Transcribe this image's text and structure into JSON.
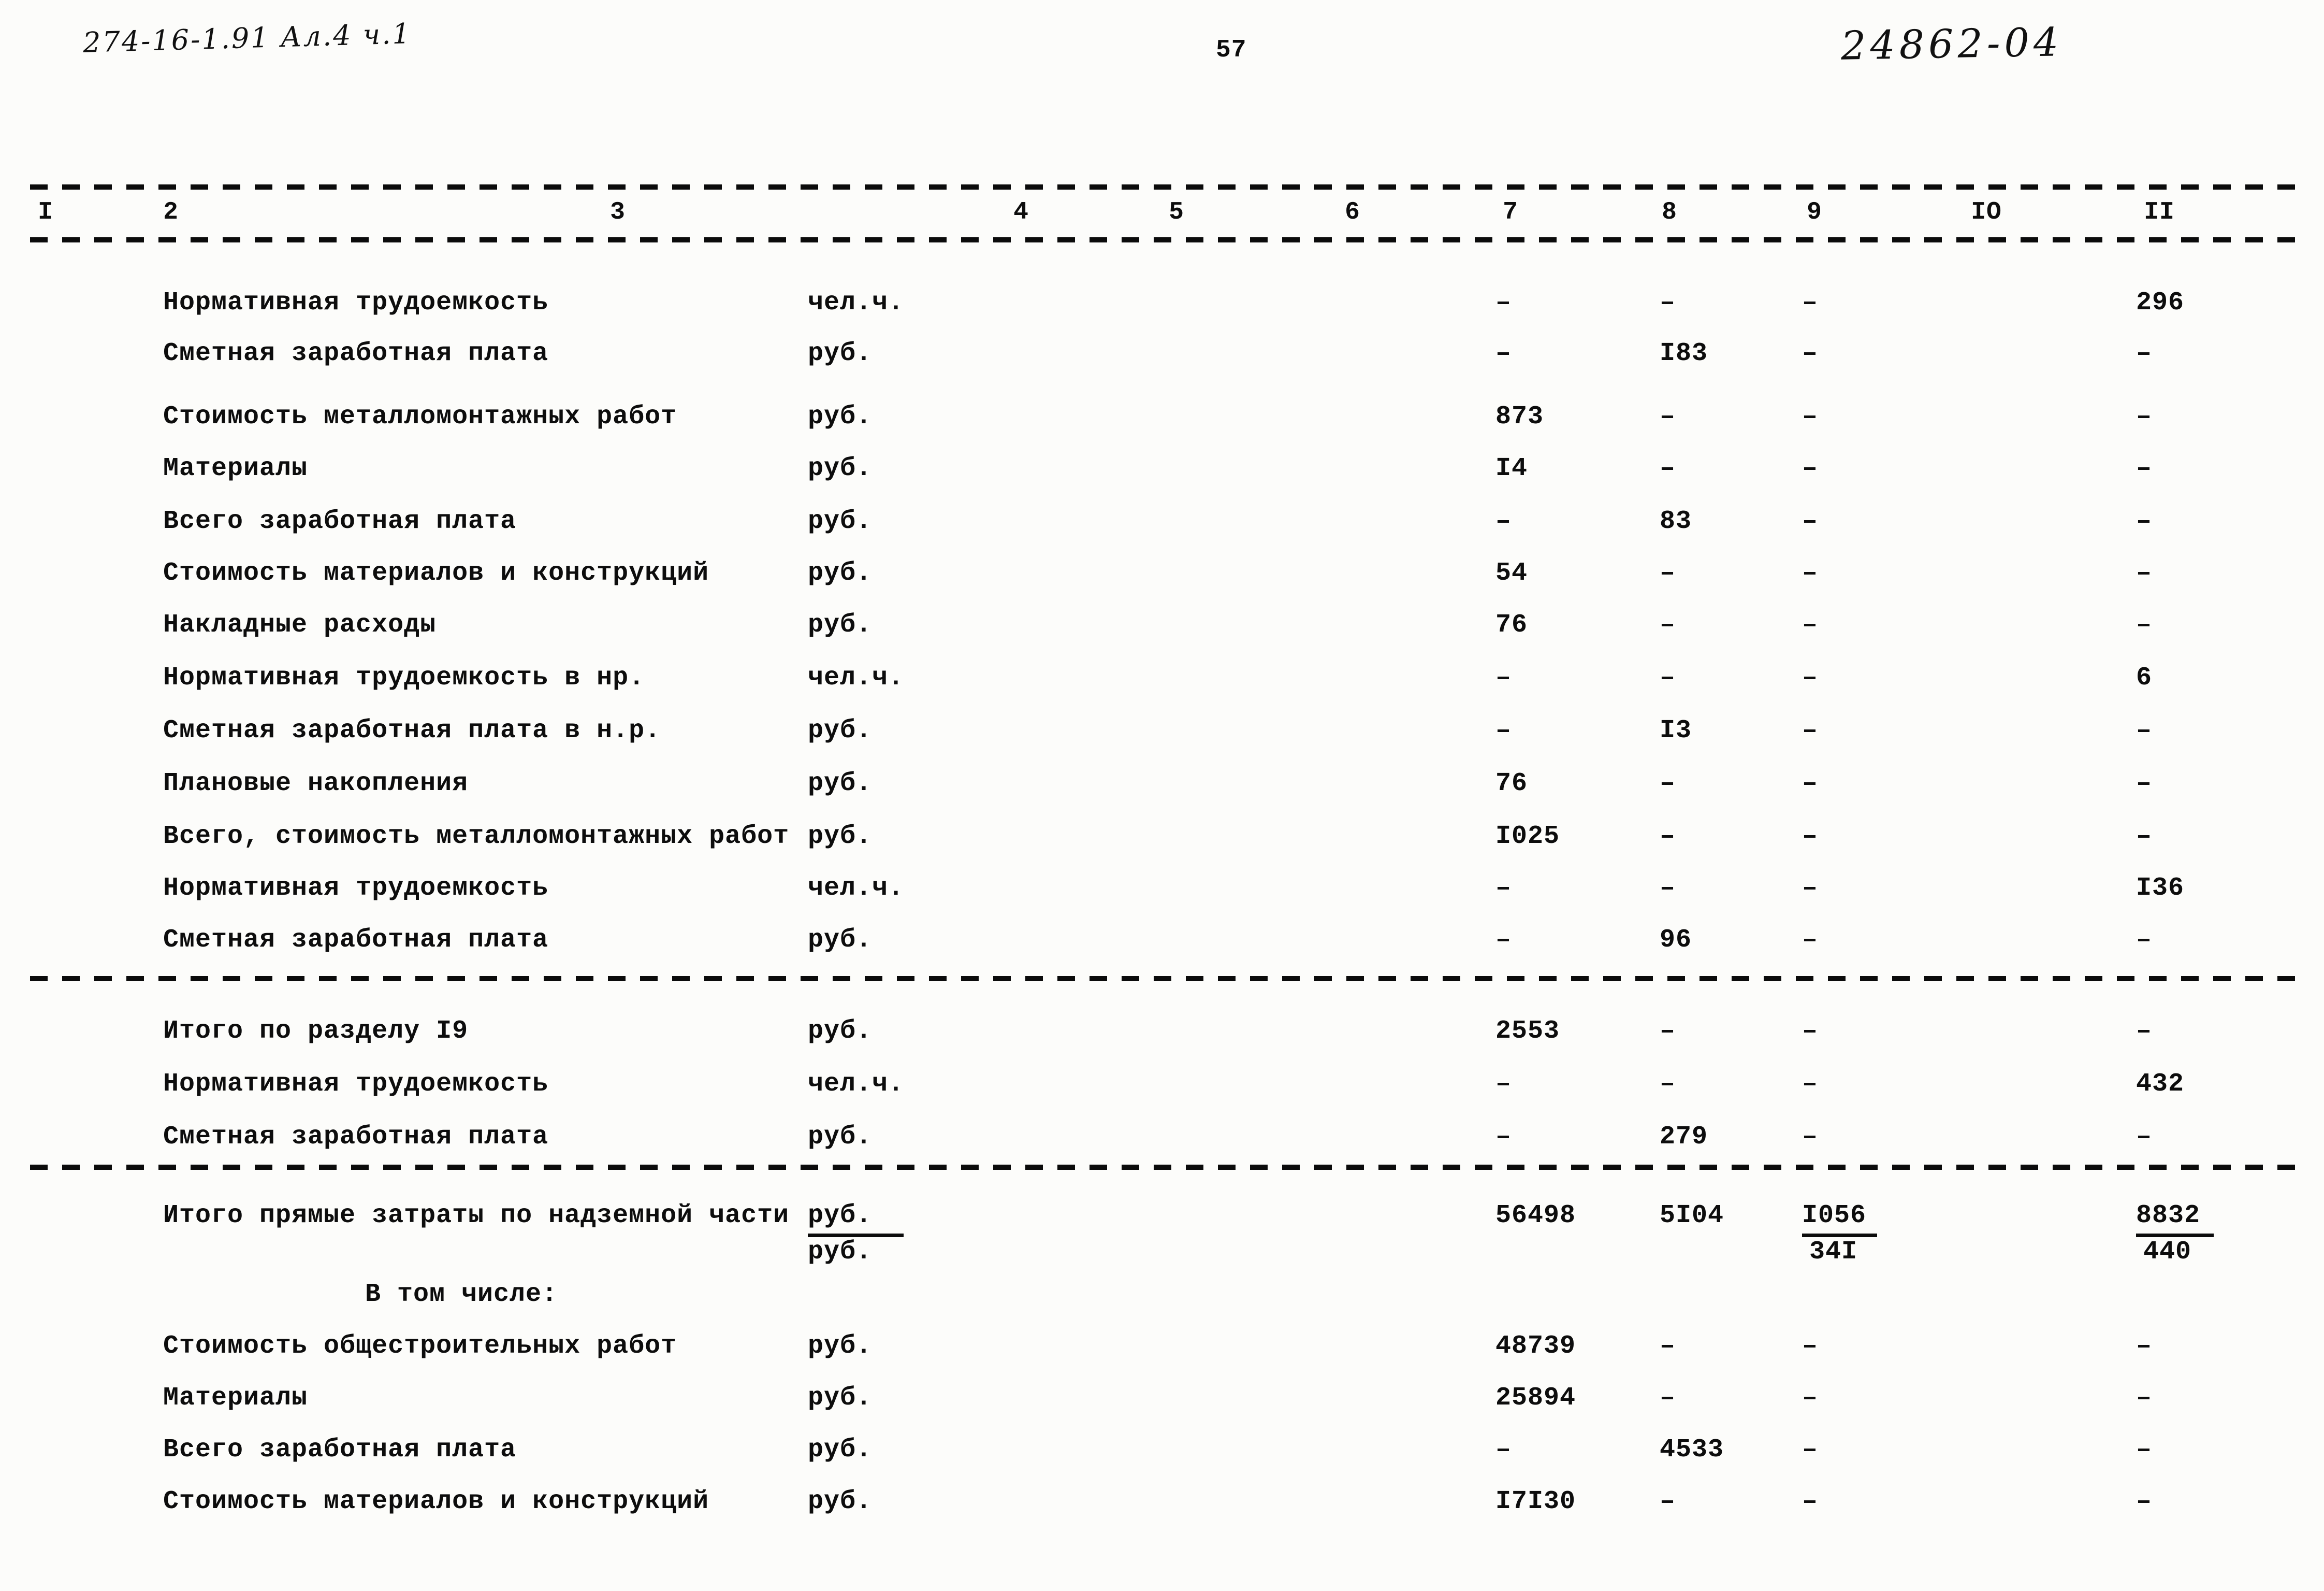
{
  "page": {
    "ref_handwritten": "274-16-1.91 Ал.4 ч.1",
    "page_number": "57",
    "doc_number": "24862-04"
  },
  "table": {
    "column_numbers": [
      "I",
      "2",
      "3",
      "4",
      "5",
      "6",
      "7",
      "8",
      "9",
      "IO",
      "II"
    ],
    "rows": [
      {
        "type": "row",
        "label": "Нормативная трудоемкость",
        "unit": "чел.ч.",
        "c7": "–",
        "c8": "–",
        "c9": "–",
        "c11": "296"
      },
      {
        "type": "row",
        "label": "Сметная заработная плата",
        "unit": "руб.",
        "c7": "–",
        "c8": "I83",
        "c9": "–",
        "c11": "–"
      },
      {
        "type": "row",
        "label": "Стоимость металломонтажных работ",
        "unit": "руб.",
        "c7": "873",
        "c8": "–",
        "c9": "–",
        "c11": "–"
      },
      {
        "type": "row",
        "label": "Материалы",
        "unit": "руб.",
        "c7": "I4",
        "c8": "–",
        "c9": "–",
        "c11": "–"
      },
      {
        "type": "row",
        "label": "Всего заработная плата",
        "unit": "руб.",
        "c7": "–",
        "c8": "83",
        "c9": "–",
        "c11": "–"
      },
      {
        "type": "row",
        "label": "Стоимость материалов и конструкций",
        "unit": "руб.",
        "c7": "54",
        "c8": "–",
        "c9": "–",
        "c11": "–"
      },
      {
        "type": "row",
        "label": "Накладные расходы",
        "unit": "руб.",
        "c7": "76",
        "c8": "–",
        "c9": "–",
        "c11": "–"
      },
      {
        "type": "row",
        "label": "Нормативная трудоемкость в нр.",
        "unit": "чел.ч.",
        "c7": "–",
        "c8": "–",
        "c9": "–",
        "c11": "6"
      },
      {
        "type": "row",
        "label": "Сметная заработная плата в н.р.",
        "unit": "руб.",
        "c7": "–",
        "c8": "I3",
        "c9": "–",
        "c11": "–"
      },
      {
        "type": "row",
        "label": "Плановые накопления",
        "unit": "руб.",
        "c7": "76",
        "c8": "–",
        "c9": "–",
        "c11": "–"
      },
      {
        "type": "row",
        "label": "Всего, стоимость металломонтажных работ",
        "unit": "руб.",
        "c7": "I025",
        "c8": "–",
        "c9": "–",
        "c11": "–"
      },
      {
        "type": "row",
        "label": "Нормативная трудоемкость",
        "unit": "чел.ч.",
        "c7": "–",
        "c8": "–",
        "c9": "–",
        "c11": "I36"
      },
      {
        "type": "row",
        "label": "Сметная заработная плата",
        "unit": "руб.",
        "c7": "–",
        "c8": "96",
        "c9": "–",
        "c11": "–"
      },
      {
        "type": "separator"
      },
      {
        "type": "row",
        "label": "Итого по разделу I9",
        "unit": "руб.",
        "c7": "2553",
        "c8": "–",
        "c9": "–",
        "c11": "–"
      },
      {
        "type": "row",
        "label": "Нормативная трудоемкость",
        "unit": "чел.ч.",
        "c7": "–",
        "c8": "–",
        "c9": "–",
        "c11": "432"
      },
      {
        "type": "row",
        "label": "Сметная заработная плата",
        "unit": "руб.",
        "c7": "–",
        "c8": "279",
        "c9": "–",
        "c11": "–"
      },
      {
        "type": "separator"
      },
      {
        "type": "fraction",
        "label": "Итого прямые затраты по надземной части",
        "unit_top": "руб.",
        "unit_bottom": "руб.",
        "c7": "56498",
        "c8": "5I04",
        "c9_top": "I056",
        "c9_bottom": "34I",
        "c11_top": "8832",
        "c11_bottom": "440"
      },
      {
        "type": "note",
        "text": "В том числе:"
      },
      {
        "type": "row",
        "label": "Стоимость общестроительных работ",
        "unit": "руб.",
        "c7": "48739",
        "c8": "–",
        "c9": "–",
        "c11": "–"
      },
      {
        "type": "row",
        "label": "Материалы",
        "unit": "руб.",
        "c7": "25894",
        "c8": "–",
        "c9": "–",
        "c11": "–"
      },
      {
        "type": "row",
        "label": "Всего заработная плата",
        "unit": "руб.",
        "c7": "–",
        "c8": "4533",
        "c9": "–",
        "c11": "–"
      },
      {
        "type": "row",
        "label": "Стоимость материалов и конструкций",
        "unit": "руб.",
        "c7": "I7I30",
        "c8": "–",
        "c9": "–",
        "c11": "–"
      }
    ]
  }
}
